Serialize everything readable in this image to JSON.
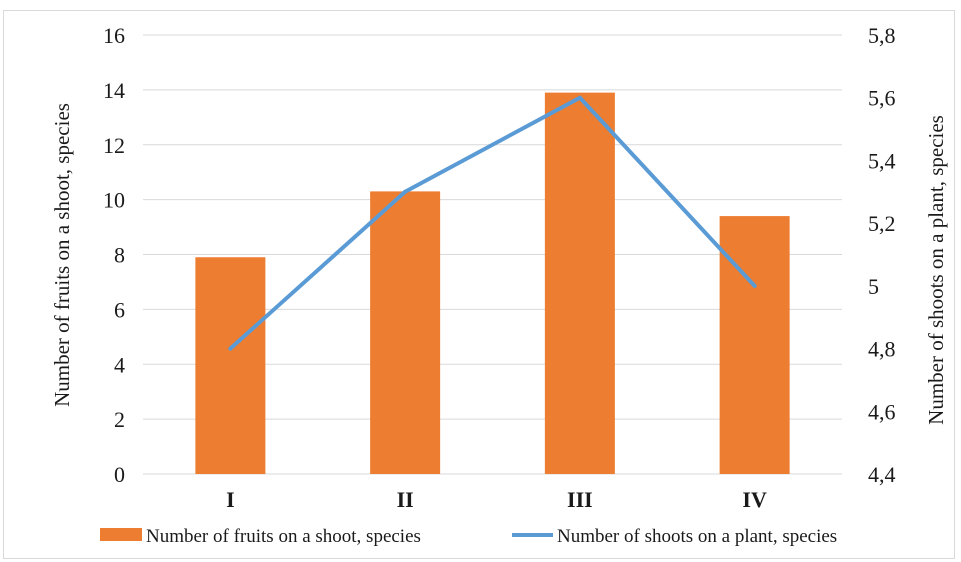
{
  "chart_data": {
    "type": "bar+line",
    "categories": [
      "I",
      "II",
      "III",
      "IV"
    ],
    "series": [
      {
        "name": "Number of fruits on a shoot, species",
        "kind": "bar",
        "axis": "left",
        "color": "#ed7d31",
        "values": [
          7.9,
          10.3,
          13.9,
          9.4
        ]
      },
      {
        "name": "Number of shoots on a plant, species",
        "kind": "line",
        "axis": "right",
        "color": "#5b9bd5",
        "values": [
          4.8,
          5.3,
          5.6,
          5.0
        ]
      }
    ],
    "y_left": {
      "label": "Number of fruits on a shoot, species",
      "lim": [
        0,
        16
      ],
      "ticks": [
        "0",
        "2",
        "4",
        "6",
        "8",
        "10",
        "12",
        "14",
        "16"
      ]
    },
    "y_right": {
      "label": "Number of shoots on a plant, species",
      "lim": [
        4.4,
        5.8
      ],
      "ticks": [
        "4,4",
        "4,6",
        "4,8",
        "5",
        "5,2",
        "5,4",
        "5,6",
        "5,8"
      ]
    },
    "grid": true,
    "legend_position": "bottom"
  }
}
